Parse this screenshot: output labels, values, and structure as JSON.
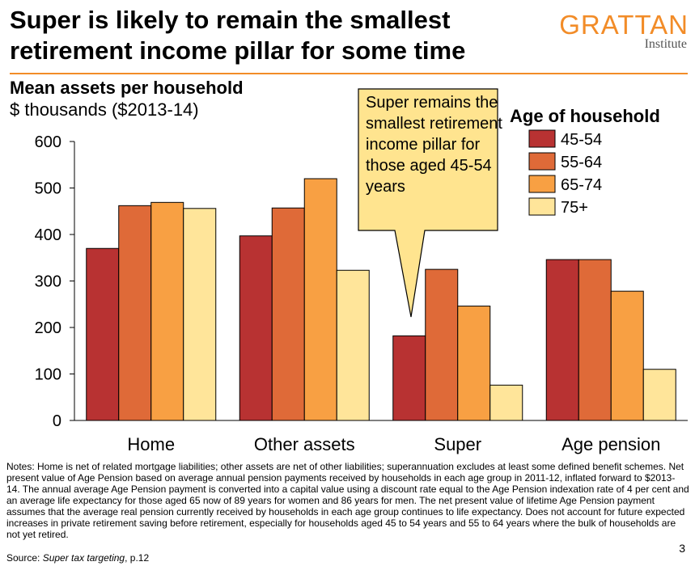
{
  "header": {
    "title": "Super is likely to remain the smallest retirement income pillar for some time",
    "logo_main": "GRATTAN",
    "logo_sub": "Institute"
  },
  "chart_data": {
    "type": "bar",
    "title": "Mean assets per household",
    "subtitle": "$ thousands ($2013-14)",
    "categories": [
      "Home",
      "Other assets",
      "Super",
      "Age pension"
    ],
    "legend_title": "Age of household",
    "legend_position": "top-right",
    "series": [
      {
        "name": "45-54",
        "color": "#B83232",
        "values": [
          370,
          397,
          182,
          346
        ]
      },
      {
        "name": "55-64",
        "color": "#DF6A38",
        "values": [
          462,
          457,
          325,
          346
        ]
      },
      {
        "name": "65-74",
        "color": "#F8A043",
        "values": [
          469,
          520,
          246,
          278
        ]
      },
      {
        "name": "75+",
        "color": "#FFE59A",
        "values": [
          456,
          323,
          76,
          110
        ]
      }
    ],
    "yticks": [
      0,
      100,
      200,
      300,
      400,
      500,
      600
    ],
    "ylim": [
      0,
      600
    ],
    "grid": false,
    "annotation": "Super remains the smallest retirement income pillar for those aged 45-54 years"
  },
  "notes": "Notes: Home is net of related mortgage liabilities; other assets are net of other liabilities; superannuation excludes at least some defined benefit schemes. Net present value of Age Pension based on average annual pension payments received by households in each age group in 2011-12, inflated forward to $2013- 14. The annual average Age Pension payment is converted into a capital value using a discount rate equal to the Age Pension indexation rate of 4 per cent and an average life expectancy for those aged 65 now of 89 years for women and 86 years for men. The net present value of lifetime Age Pension payment assumes that the average real pension currently received by households in each age group continues to life expectancy. Does not account for future expected increases in private retirement saving before retirement, especially for households aged 45 to 54 years and 55 to 64 years where the bulk of households are not yet retired.",
  "source": {
    "prefix": "Source: ",
    "title": "Super tax targeting",
    "suffix": ", p.12"
  },
  "page_number": "3",
  "colors": {
    "accent": "#F28C28",
    "callout_fill": "#FFE48F"
  }
}
